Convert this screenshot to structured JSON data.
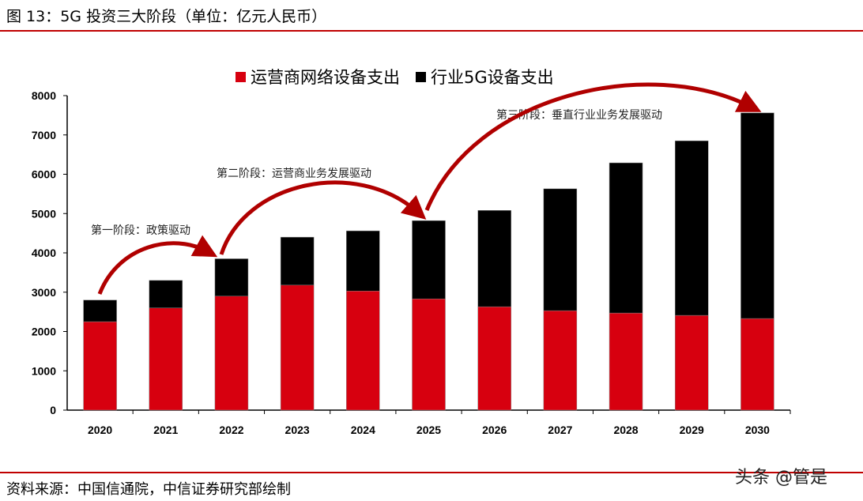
{
  "title": "图 13：5G 投资三大阶段（单位：亿元人民币）",
  "source": "资料来源：中国信通院，中信证券研究部绘制",
  "watermark": "头条 @管是",
  "chart_data": {
    "type": "bar",
    "stacked": true,
    "title": "",
    "xlabel": "",
    "ylabel": "",
    "ylim": [
      0,
      8000
    ],
    "yticks": [
      0,
      1000,
      2000,
      3000,
      4000,
      5000,
      6000,
      7000,
      8000
    ],
    "categories": [
      "2020",
      "2021",
      "2022",
      "2023",
      "2024",
      "2025",
      "2026",
      "2027",
      "2028",
      "2029",
      "2030"
    ],
    "legend_position": "top",
    "series": [
      {
        "name": "运营商网络设备支出",
        "color": "#d7000f",
        "values": [
          2250,
          2600,
          2900,
          3180,
          3030,
          2830,
          2630,
          2530,
          2470,
          2410,
          2330
        ]
      },
      {
        "name": "行业5G设备支出",
        "color": "#000000",
        "values": [
          550,
          700,
          950,
          1220,
          1530,
          1990,
          2450,
          3100,
          3820,
          4440,
          5230
        ]
      }
    ],
    "annotations": [
      "第一阶段：政策驱动",
      "第二阶段：运营商业务发展驱动",
      "第三阶段：垂直行业业务发展驱动"
    ],
    "arrow_color": "#b00000"
  }
}
